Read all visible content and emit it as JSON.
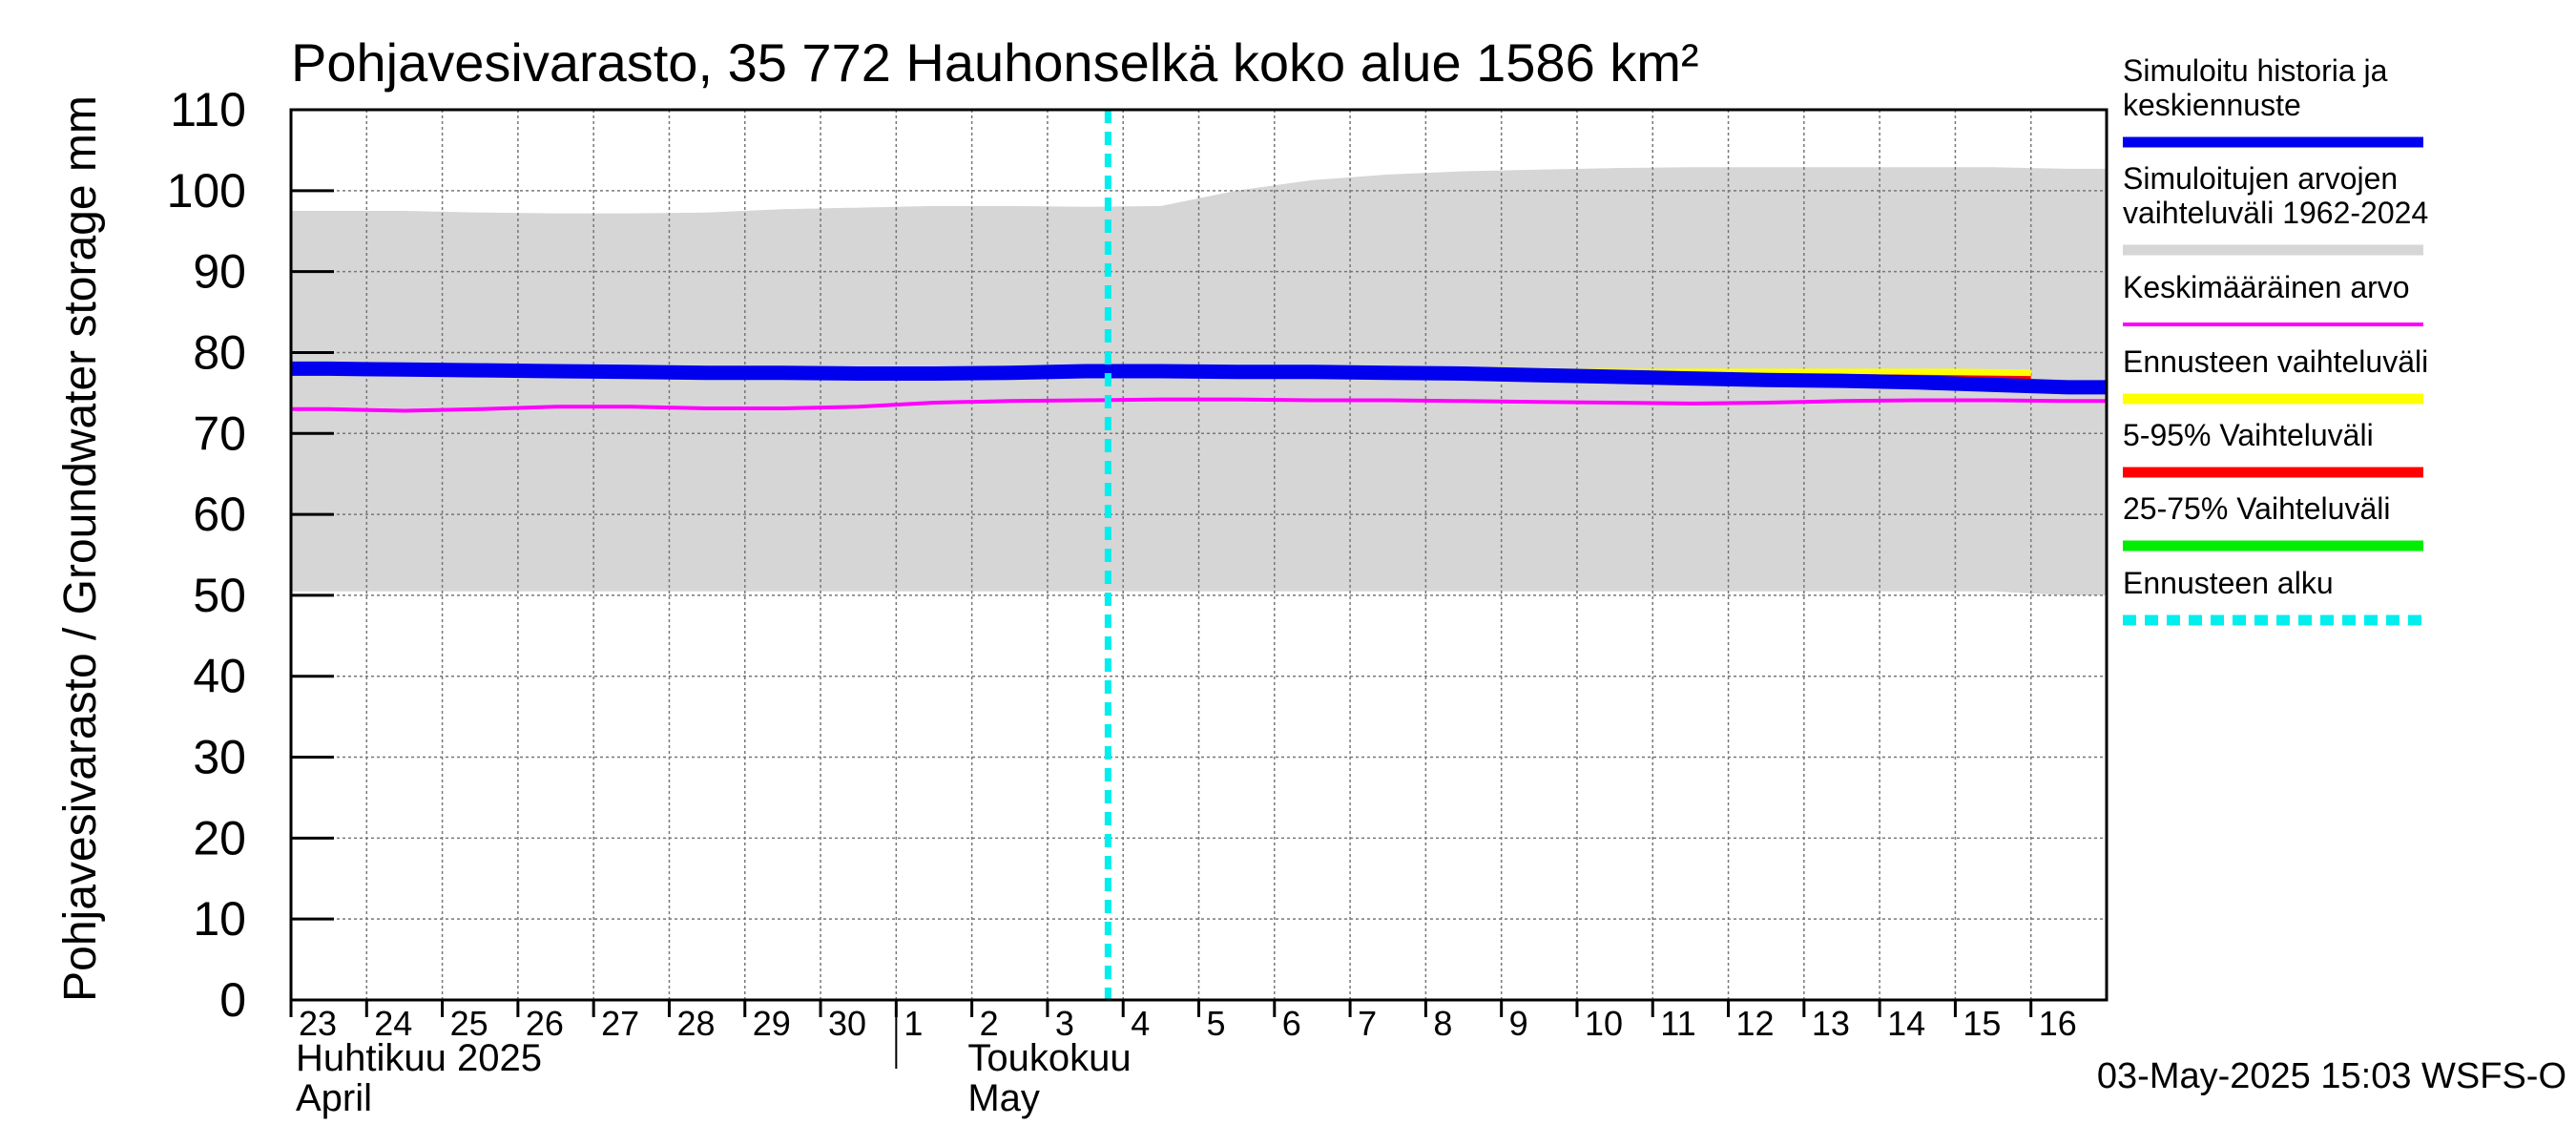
{
  "chart_data": {
    "type": "area",
    "title": "Pohjavesivarasto, 35 772 Hauhonselkä koko alue 1586 km²",
    "ylabel": "Pohjavesivarasto / Groundwater storage   mm",
    "ylim": [
      0,
      110
    ],
    "yticks": [
      0,
      10,
      20,
      30,
      40,
      50,
      60,
      70,
      80,
      90,
      100,
      110
    ],
    "grid": true,
    "x_days": [
      "23",
      "24",
      "25",
      "26",
      "27",
      "28",
      "29",
      "30",
      "1",
      "2",
      "3",
      "4",
      "5",
      "6",
      "7",
      "8",
      "9",
      "10",
      "11",
      "12",
      "13",
      "14",
      "15",
      "16"
    ],
    "month_labels": {
      "april_fi": "Huhtikuu  2025",
      "april_en": "April",
      "may_fi": "Toukokuu",
      "may_en": "May"
    },
    "forecast_start_day_index": 10.8,
    "series": [
      {
        "name": "Simuloitujen arvojen vaihteluväli 1962-2024",
        "kind": "band",
        "color": "#d6d6d6",
        "upper": [
          97.5,
          97.5,
          97.3,
          97.2,
          97.2,
          97.3,
          97.7,
          97.9,
          98.1,
          98.1,
          98.0,
          98.1,
          100.0,
          101.3,
          102.0,
          102.4,
          102.6,
          102.8,
          102.9,
          102.9,
          102.9,
          102.9,
          102.9,
          102.7
        ],
        "lower": [
          50.5,
          50.5,
          50.5,
          50.5,
          50.5,
          50.5,
          50.5,
          50.5,
          50.5,
          50.5,
          50.5,
          50.5,
          50.5,
          50.5,
          50.5,
          50.5,
          50.5,
          50.5,
          50.5,
          50.5,
          50.5,
          50.5,
          50.5,
          50.0
        ]
      },
      {
        "name": "Ennusteen vaihteluväli",
        "kind": "forecast-band",
        "color": "#ffff00",
        "x": [
          10.8,
          12,
          13,
          14,
          15,
          16,
          17,
          18,
          19,
          20,
          21,
          22,
          23
        ],
        "upper": [
          78.2,
          78.2,
          78.2,
          78.2,
          78.2,
          78.2,
          78.0,
          78.0,
          78.0,
          78.0,
          78.0,
          78.0,
          77.9
        ],
        "lower": [
          77.6,
          77.6,
          77.5,
          77.5,
          77.4,
          77.2,
          76.9,
          76.6,
          76.3,
          76.1,
          75.8,
          75.6,
          75.4
        ]
      },
      {
        "name": "5-95% Vaihteluväli",
        "kind": "forecast-band",
        "color": "#ff0000",
        "x": [
          10.8,
          12,
          13,
          14,
          15,
          16,
          17,
          18,
          19,
          20,
          21,
          22,
          23
        ],
        "upper": [
          78.0,
          78.0,
          78.0,
          78.0,
          78.0,
          77.9,
          77.7,
          77.6,
          77.5,
          77.4,
          77.3,
          77.2,
          77.1
        ],
        "lower": [
          77.6,
          77.6,
          77.5,
          77.5,
          77.4,
          77.2,
          76.9,
          76.6,
          76.3,
          76.1,
          75.8,
          75.6,
          75.4
        ]
      },
      {
        "name": "25-75% Vaihteluväli",
        "kind": "forecast-band",
        "color": "#00ee00",
        "x": [
          10.8,
          12,
          13,
          14,
          15,
          16,
          17,
          18,
          19,
          20,
          21,
          22,
          23
        ],
        "upper": [
          77.8,
          77.8,
          77.8,
          77.8,
          77.7,
          77.6,
          77.4,
          77.2,
          77.0,
          76.8,
          76.6,
          76.4,
          76.2
        ],
        "lower": [
          77.7,
          77.7,
          77.6,
          77.6,
          77.5,
          77.4,
          77.2,
          77.0,
          76.7,
          76.5,
          76.3,
          76.1,
          75.9
        ]
      },
      {
        "name": "Keskimääräinen arvo",
        "kind": "line",
        "color": "#ff00ff",
        "values": [
          73.0,
          72.8,
          73.0,
          73.3,
          73.3,
          73.1,
          73.1,
          73.3,
          73.8,
          74.0,
          74.1,
          74.2,
          74.2,
          74.1,
          74.1,
          74.0,
          73.9,
          73.8,
          73.7,
          73.8,
          74.0,
          74.1,
          74.1,
          74.0
        ]
      },
      {
        "name": "Simuloitu historia ja keskiennuste",
        "kind": "line",
        "color": "#0000ee",
        "values": [
          78.0,
          77.9,
          77.8,
          77.7,
          77.6,
          77.5,
          77.5,
          77.4,
          77.4,
          77.5,
          77.7,
          77.7,
          77.6,
          77.6,
          77.5,
          77.4,
          77.2,
          77.0,
          76.8,
          76.6,
          76.5,
          76.3,
          76.0,
          75.7
        ]
      }
    ],
    "legend": {
      "position": "right",
      "entries": [
        {
          "label_lines": [
            "Simuloitu historia ja",
            "keskiennuste"
          ],
          "color": "#0000ee",
          "style": "solid"
        },
        {
          "label_lines": [
            "Simuloitujen arvojen",
            "vaihteluväli 1962-2024"
          ],
          "color": "#d6d6d6",
          "style": "solid"
        },
        {
          "label_lines": [
            "Keskimääräinen arvo"
          ],
          "color": "#ff00ff",
          "style": "thin"
        },
        {
          "label_lines": [
            "Ennusteen vaihteluväli"
          ],
          "color": "#ffff00",
          "style": "solid"
        },
        {
          "label_lines": [
            "5-95% Vaihteluväli"
          ],
          "color": "#ff0000",
          "style": "solid"
        },
        {
          "label_lines": [
            "25-75% Vaihteluväli"
          ],
          "color": "#00ee00",
          "style": "solid"
        },
        {
          "label_lines": [
            "Ennusteen alku"
          ],
          "color": "#00eeee",
          "style": "dashed"
        }
      ]
    },
    "footer": "03-May-2025 15:03 WSFS-O"
  }
}
